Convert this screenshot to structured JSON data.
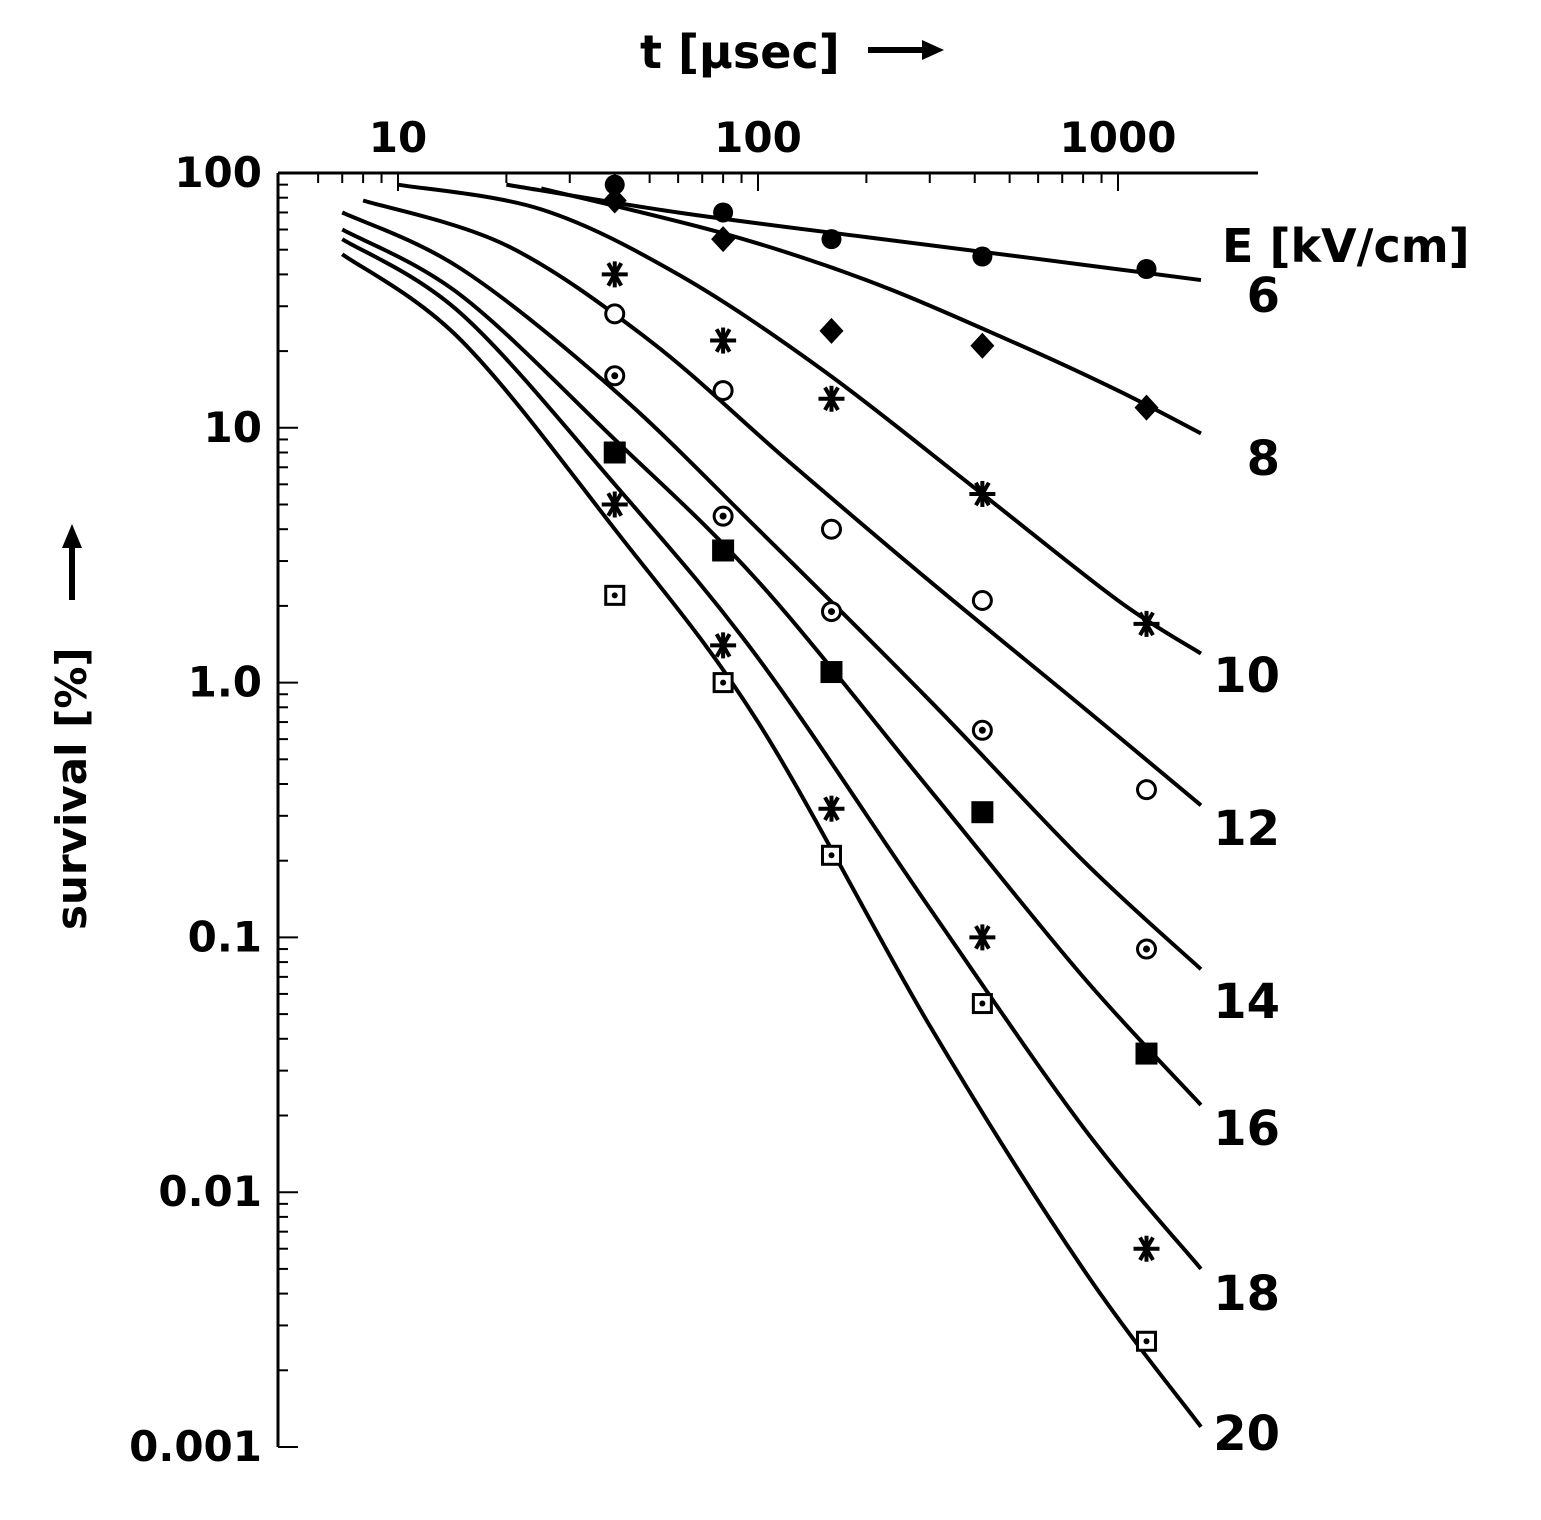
{
  "chart_data": {
    "type": "scatter",
    "title": "",
    "xlabel": "t [μsec]",
    "ylabel": "survival [%]",
    "x_scale": "log",
    "y_scale": "log",
    "xlim": [
      6,
      1700
    ],
    "ylim": [
      0.001,
      100
    ],
    "x_ticks": [
      {
        "value": 10,
        "label": "10"
      },
      {
        "value": 100,
        "label": "100"
      },
      {
        "value": 1000,
        "label": "1000"
      }
    ],
    "y_ticks": [
      {
        "value": 100,
        "label": "100"
      },
      {
        "value": 10,
        "label": "10"
      },
      {
        "value": 1,
        "label": "1.0"
      },
      {
        "value": 0.1,
        "label": "0.1"
      },
      {
        "value": 0.01,
        "label": "0.01"
      },
      {
        "value": 0.001,
        "label": "0.001"
      }
    ],
    "legend_title": "E [kV/cm]",
    "grid": false,
    "series": [
      {
        "name": "6",
        "marker": "circle-filled",
        "points": [
          [
            40,
            90
          ],
          [
            80,
            70
          ],
          [
            160,
            55
          ],
          [
            420,
            47
          ],
          [
            1200,
            42
          ]
        ],
        "curve": [
          [
            20,
            90
          ],
          [
            60,
            70
          ],
          [
            200,
            56
          ],
          [
            600,
            46
          ],
          [
            1700,
            38
          ]
        ]
      },
      {
        "name": "8",
        "marker": "diamond-filled",
        "points": [
          [
            40,
            78
          ],
          [
            80,
            55
          ],
          [
            160,
            24
          ],
          [
            420,
            21
          ],
          [
            1200,
            12
          ]
        ],
        "curve": [
          [
            25,
            87
          ],
          [
            80,
            58
          ],
          [
            200,
            38
          ],
          [
            500,
            22
          ],
          [
            1000,
            14
          ],
          [
            1700,
            9.5
          ]
        ]
      },
      {
        "name": "10",
        "marker": "asterisk",
        "points": [
          [
            40,
            40
          ],
          [
            80,
            22
          ],
          [
            160,
            13
          ],
          [
            420,
            5.5
          ],
          [
            1200,
            1.7
          ]
        ],
        "curve": [
          [
            10,
            90
          ],
          [
            25,
            72
          ],
          [
            60,
            40
          ],
          [
            150,
            17
          ],
          [
            400,
            5.8
          ],
          [
            1000,
            2.1
          ],
          [
            1700,
            1.3
          ]
        ]
      },
      {
        "name": "12",
        "marker": "circle-open",
        "points": [
          [
            40,
            28
          ],
          [
            80,
            14
          ],
          [
            160,
            4
          ],
          [
            420,
            2.1
          ],
          [
            1200,
            0.38
          ]
        ],
        "curve": [
          [
            8,
            78
          ],
          [
            20,
            52
          ],
          [
            50,
            22
          ],
          [
            120,
            7.5
          ],
          [
            300,
            2.5
          ],
          [
            800,
            0.8
          ],
          [
            1700,
            0.33
          ]
        ]
      },
      {
        "name": "14",
        "marker": "circle-dot",
        "points": [
          [
            40,
            16
          ],
          [
            80,
            4.5
          ],
          [
            160,
            1.9
          ],
          [
            420,
            0.65
          ],
          [
            1200,
            0.09
          ]
        ],
        "curve": [
          [
            7,
            70
          ],
          [
            15,
            42
          ],
          [
            40,
            14
          ],
          [
            100,
            4
          ],
          [
            300,
            0.85
          ],
          [
            800,
            0.2
          ],
          [
            1700,
            0.075
          ]
        ]
      },
      {
        "name": "16",
        "marker": "square-filled",
        "points": [
          [
            40,
            8
          ],
          [
            80,
            3.3
          ],
          [
            160,
            1.1
          ],
          [
            420,
            0.31
          ],
          [
            1200,
            0.035
          ]
        ],
        "curve": [
          [
            7,
            60
          ],
          [
            15,
            33
          ],
          [
            40,
            9
          ],
          [
            100,
            2.5
          ],
          [
            300,
            0.38
          ],
          [
            800,
            0.07
          ],
          [
            1700,
            0.022
          ]
        ]
      },
      {
        "name": "18",
        "marker": "asterisk",
        "points": [
          [
            40,
            5
          ],
          [
            80,
            1.4
          ],
          [
            160,
            0.32
          ],
          [
            420,
            0.1
          ],
          [
            1200,
            0.006
          ]
        ],
        "curve": [
          [
            7,
            55
          ],
          [
            15,
            28
          ],
          [
            40,
            6
          ],
          [
            100,
            1.25
          ],
          [
            300,
            0.13
          ],
          [
            800,
            0.018
          ],
          [
            1700,
            0.005
          ]
        ]
      },
      {
        "name": "20",
        "marker": "square-dot",
        "points": [
          [
            40,
            2.2
          ],
          [
            80,
            1.0
          ],
          [
            160,
            0.21
          ],
          [
            420,
            0.055
          ],
          [
            1200,
            0.0026
          ]
        ],
        "curve": [
          [
            7,
            48
          ],
          [
            15,
            22
          ],
          [
            40,
            4
          ],
          [
            100,
            0.7
          ],
          [
            300,
            0.045
          ],
          [
            800,
            0.005
          ],
          [
            1700,
            0.0012
          ]
        ]
      }
    ]
  }
}
